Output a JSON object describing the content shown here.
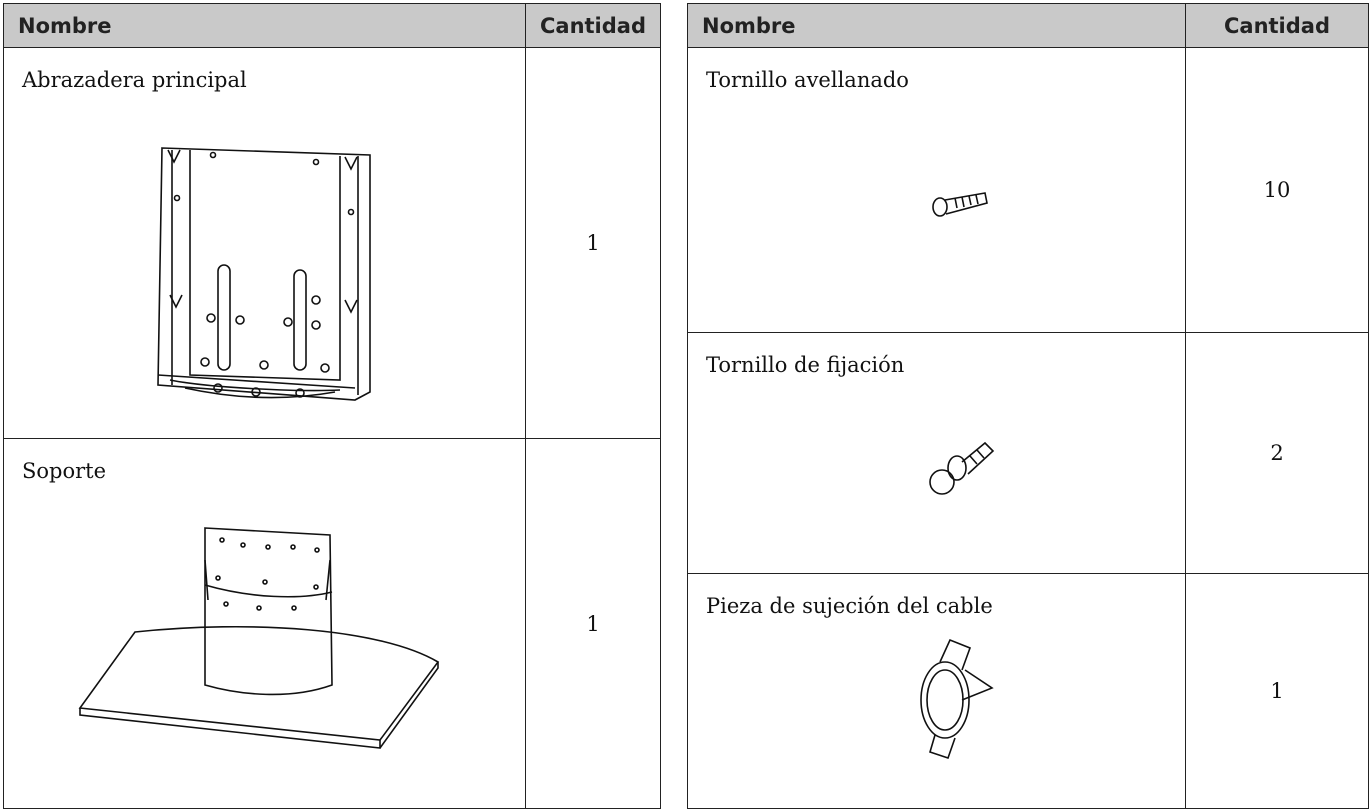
{
  "tables": [
    {
      "header": [
        "Nombre",
        "Cantidad"
      ],
      "rows": [
        {
          "name": "Abrazadera principal",
          "quantity": 1
        },
        {
          "name": "Soporte",
          "quantity": 1
        }
      ]
    },
    {
      "header": [
        "Nombre",
        "Cantidad"
      ],
      "rows": [
        {
          "name": "Tornillo avellanado",
          "quantity": 10
        },
        {
          "name": "Tornillo de fijación",
          "quantity": 2
        },
        {
          "name": "Pieza de sujeción del cable",
          "quantity": 1
        }
      ]
    }
  ]
}
